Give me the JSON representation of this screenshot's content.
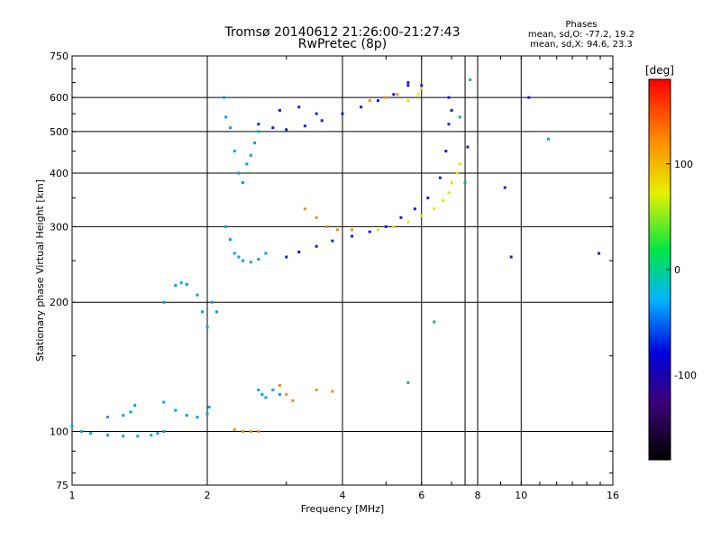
{
  "chart_data": {
    "type": "scatter",
    "title": "Tromsø 20140612 21:26:00-21:27:43",
    "subtitle": "RwPretec (8p)",
    "xlabel": "Frequency [MHz]",
    "ylabel": "Stationary phase Virtual Height [km]",
    "x_scale": "log",
    "y_scale": "log",
    "xlim": [
      1,
      16
    ],
    "ylim": [
      75,
      750
    ],
    "x_ticks": [
      1,
      2,
      4,
      6,
      8,
      10,
      16
    ],
    "x_tick_labels": [
      "1",
      "2",
      "4",
      "6",
      "8",
      "10",
      "16"
    ],
    "x_grid": [
      2,
      4,
      6,
      7.5,
      8,
      10
    ],
    "y_ticks": [
      75,
      100,
      200,
      300,
      400,
      500,
      600,
      750
    ],
    "y_tick_labels": [
      "75",
      "100",
      "200",
      "300",
      "400",
      "500",
      "600",
      "750"
    ],
    "y_grid": [
      100,
      200,
      300,
      400,
      500,
      600
    ],
    "grid": true,
    "phase_stats": {
      "title": "Phases",
      "line_o": "mean, sd,O: -77.2, 19.2",
      "line_x": "mean, sd,X:  94.6, 23.3"
    },
    "colorbar": {
      "label": "[deg]",
      "range": [
        -180,
        180
      ],
      "ticks": [
        -100,
        0,
        100
      ],
      "tick_labels": [
        "-100",
        "0",
        "100"
      ]
    },
    "series": [
      {
        "color": "#00a0e6",
        "phase": -20,
        "points": [
          [
            1.0,
            103
          ],
          [
            1.05,
            100
          ],
          [
            1.1,
            99
          ],
          [
            1.2,
            98
          ],
          [
            1.3,
            97.5
          ],
          [
            1.4,
            97.5
          ],
          [
            1.5,
            98
          ],
          [
            1.55,
            99
          ],
          [
            1.6,
            100
          ],
          [
            1.2,
            108
          ],
          [
            1.3,
            109
          ],
          [
            1.35,
            111
          ],
          [
            1.38,
            115
          ],
          [
            1.6,
            117
          ],
          [
            1.7,
            112
          ],
          [
            1.8,
            109
          ],
          [
            1.9,
            108
          ],
          [
            2.0,
            110
          ],
          [
            2.02,
            114
          ],
          [
            1.6,
            200
          ],
          [
            1.7,
            219
          ],
          [
            1.75,
            222
          ],
          [
            1.8,
            220
          ],
          [
            1.9,
            208
          ],
          [
            1.95,
            190
          ],
          [
            2.0,
            175
          ],
          [
            2.05,
            200
          ],
          [
            2.1,
            190
          ],
          [
            2.18,
            600
          ],
          [
            2.2,
            540
          ],
          [
            2.25,
            510
          ],
          [
            2.3,
            450
          ],
          [
            2.35,
            400
          ],
          [
            2.4,
            380
          ],
          [
            2.45,
            420
          ],
          [
            2.5,
            440
          ],
          [
            2.55,
            470
          ],
          [
            2.6,
            500
          ],
          [
            2.2,
            300
          ],
          [
            2.25,
            280
          ],
          [
            2.3,
            260
          ],
          [
            2.35,
            255
          ],
          [
            2.4,
            250
          ],
          [
            2.5,
            248
          ],
          [
            2.6,
            252
          ],
          [
            2.7,
            260
          ],
          [
            2.6,
            125
          ],
          [
            2.65,
            122
          ],
          [
            2.7,
            120
          ],
          [
            2.8,
            125
          ],
          [
            2.9,
            122
          ]
        ]
      },
      {
        "color": "#0a1ee6",
        "phase": -90,
        "points": [
          [
            2.6,
            520
          ],
          [
            2.8,
            510
          ],
          [
            3.0,
            505
          ],
          [
            3.3,
            515
          ],
          [
            3.6,
            530
          ],
          [
            4.0,
            550
          ],
          [
            4.4,
            570
          ],
          [
            4.8,
            590
          ],
          [
            5.2,
            610
          ],
          [
            5.6,
            640
          ],
          [
            3.0,
            255
          ],
          [
            3.2,
            262
          ],
          [
            3.5,
            270
          ],
          [
            3.8,
            278
          ],
          [
            4.2,
            285
          ],
          [
            4.6,
            292
          ],
          [
            5.0,
            300
          ],
          [
            5.4,
            315
          ],
          [
            5.8,
            330
          ],
          [
            6.2,
            350
          ],
          [
            6.6,
            390
          ],
          [
            6.8,
            450
          ],
          [
            6.9,
            520
          ],
          [
            2.9,
            560
          ],
          [
            3.2,
            570
          ],
          [
            3.5,
            550
          ]
        ]
      },
      {
        "color": "#e6e600",
        "phase": 110,
        "points": [
          [
            4.8,
            295
          ],
          [
            5.2,
            300
          ],
          [
            5.6,
            308
          ],
          [
            6.0,
            318
          ],
          [
            6.4,
            330
          ],
          [
            6.7,
            345
          ],
          [
            6.9,
            360
          ],
          [
            7.0,
            380
          ],
          [
            7.2,
            400
          ],
          [
            7.3,
            420
          ],
          [
            5.6,
            590
          ],
          [
            5.9,
            610
          ],
          [
            6.0,
            630
          ]
        ]
      },
      {
        "color": "#f08c14",
        "phase": 140,
        "points": [
          [
            3.3,
            330
          ],
          [
            3.5,
            315
          ],
          [
            3.7,
            300
          ],
          [
            3.9,
            295
          ],
          [
            4.2,
            295
          ],
          [
            4.6,
            590
          ],
          [
            5.0,
            600
          ],
          [
            5.3,
            610
          ],
          [
            2.3,
            101
          ],
          [
            2.4,
            100
          ],
          [
            2.5,
            100
          ],
          [
            2.6,
            100
          ],
          [
            2.9,
            128
          ],
          [
            3.0,
            122
          ],
          [
            3.1,
            118
          ],
          [
            3.5,
            125
          ],
          [
            3.8,
            124
          ]
        ]
      },
      {
        "color": "#1e1ec8",
        "phase": -120,
        "points": [
          [
            5.6,
            650
          ],
          [
            6.0,
            640
          ],
          [
            6.9,
            600
          ],
          [
            7.0,
            560
          ],
          [
            9.2,
            370
          ],
          [
            9.5,
            255
          ],
          [
            10.4,
            600
          ],
          [
            14.9,
            260
          ],
          [
            7.6,
            460
          ]
        ]
      },
      {
        "color": "#14b478",
        "phase": 30,
        "points": [
          [
            7.3,
            540
          ],
          [
            7.5,
            380
          ],
          [
            7.7,
            660
          ],
          [
            6.4,
            180
          ],
          [
            5.6,
            130
          ],
          [
            11.5,
            480
          ]
        ]
      }
    ]
  }
}
